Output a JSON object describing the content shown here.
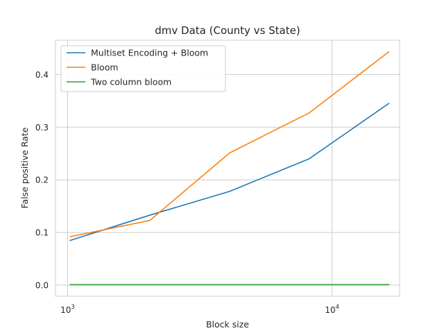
{
  "chart_data": {
    "type": "line",
    "title": "dmv Data (County vs State)",
    "xlabel": "Block size",
    "ylabel": "False positive Rate",
    "xscale": "log",
    "xlim": [
      900,
      18000
    ],
    "ylim": [
      -0.021,
      0.465
    ],
    "grid": true,
    "legend_position": "top-left",
    "x": [
      1024,
      2048,
      4096,
      8192,
      16384
    ],
    "x_ticks": [
      {
        "value": 1000,
        "base": "10",
        "exp": "3"
      },
      {
        "value": 10000,
        "base": "10",
        "exp": "4"
      }
    ],
    "y_ticks": [
      {
        "value": 0.0,
        "label": "0.0"
      },
      {
        "value": 0.1,
        "label": "0.1"
      },
      {
        "value": 0.2,
        "label": "0.2"
      },
      {
        "value": 0.3,
        "label": "0.3"
      },
      {
        "value": 0.4,
        "label": "0.4"
      }
    ],
    "series": [
      {
        "name": "Multiset Encoding + Bloom",
        "color": "#1f77b4",
        "values": [
          0.085,
          0.133,
          0.178,
          0.24,
          0.345
        ]
      },
      {
        "name": "Bloom",
        "color": "#ff7f0e",
        "values": [
          0.092,
          0.123,
          0.251,
          0.327,
          0.443
        ]
      },
      {
        "name": "Two column bloom",
        "color": "#2ca02c",
        "values": [
          0.001,
          0.001,
          0.001,
          0.001,
          0.001
        ]
      }
    ]
  }
}
